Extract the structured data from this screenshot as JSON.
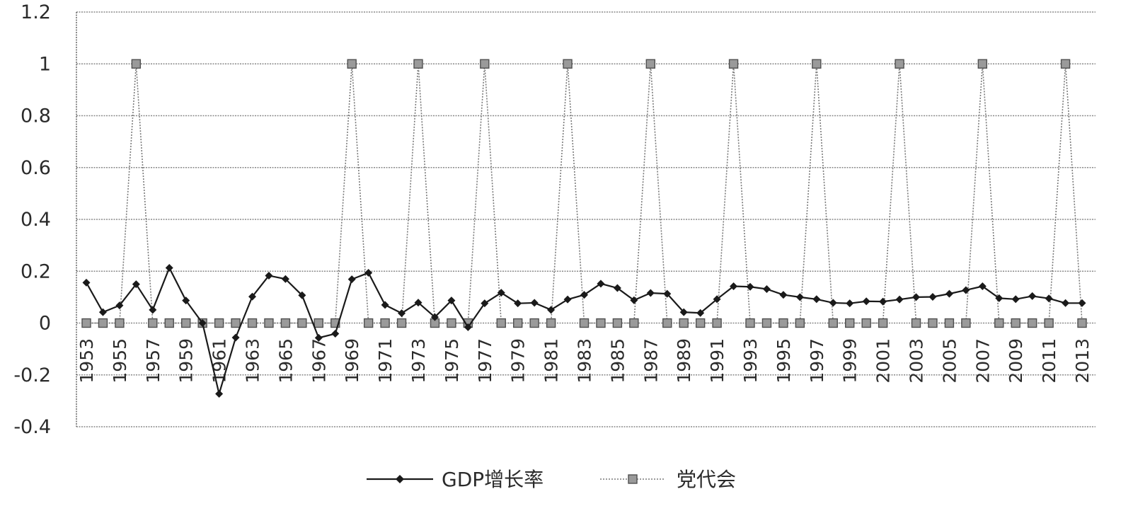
{
  "chart_data": {
    "type": "line",
    "title": "",
    "xlabel": "",
    "ylabel": "",
    "ylim": [
      -0.4,
      1.2
    ],
    "y_ticks": [
      "1.2",
      "1",
      "0.8",
      "0.6",
      "0.4",
      "0.2",
      "0",
      "-0.2",
      "-0.4"
    ],
    "grid": true,
    "legend_position": "bottom",
    "x_tick_labels": [
      "1953",
      "1955",
      "1957",
      "1959",
      "1961",
      "1963",
      "1965",
      "1967",
      "1969",
      "1971",
      "1973",
      "1975",
      "1977",
      "1979",
      "1981",
      "1983",
      "1985",
      "1987",
      "1989",
      "1991",
      "1993",
      "1995",
      "1997",
      "1999",
      "2001",
      "2003",
      "2005",
      "2007",
      "2009",
      "2011",
      "2013"
    ],
    "x": [
      1953,
      1954,
      1955,
      1956,
      1957,
      1958,
      1959,
      1960,
      1961,
      1962,
      1963,
      1964,
      1965,
      1966,
      1967,
      1968,
      1969,
      1970,
      1971,
      1972,
      1973,
      1974,
      1975,
      1976,
      1977,
      1978,
      1979,
      1980,
      1981,
      1982,
      1983,
      1984,
      1985,
      1986,
      1987,
      1988,
      1989,
      1990,
      1991,
      1992,
      1993,
      1994,
      1995,
      1996,
      1997,
      1998,
      1999,
      2000,
      2001,
      2002,
      2003,
      2004,
      2005,
      2006,
      2007,
      2008,
      2009,
      2010,
      2011,
      2012,
      2013
    ],
    "series": [
      {
        "name": "GDP增长率",
        "style": "solid",
        "marker": "diamond",
        "color": "#1a1a1a",
        "values": [
          0.156,
          0.042,
          0.068,
          0.15,
          0.051,
          0.213,
          0.087,
          0.0,
          -0.273,
          -0.056,
          0.102,
          0.183,
          0.17,
          0.107,
          -0.057,
          -0.041,
          0.169,
          0.194,
          0.07,
          0.038,
          0.079,
          0.023,
          0.087,
          -0.016,
          0.076,
          0.117,
          0.076,
          0.078,
          0.051,
          0.091,
          0.109,
          0.152,
          0.135,
          0.088,
          0.116,
          0.113,
          0.042,
          0.039,
          0.092,
          0.142,
          0.14,
          0.131,
          0.109,
          0.1,
          0.092,
          0.078,
          0.076,
          0.084,
          0.083,
          0.091,
          0.1,
          0.101,
          0.113,
          0.127,
          0.142,
          0.096,
          0.092,
          0.104,
          0.095,
          0.077,
          0.077
        ]
      },
      {
        "name": "党代会",
        "style": "dotted",
        "marker": "square",
        "color": "#7a7a7a",
        "values": [
          0,
          0,
          0,
          1,
          0,
          0,
          0,
          0,
          0,
          0,
          0,
          0,
          0,
          0,
          0,
          0,
          1,
          0,
          0,
          0,
          1,
          0,
          0,
          0,
          1,
          0,
          0,
          0,
          0,
          1,
          0,
          0,
          0,
          0,
          1,
          0,
          0,
          0,
          0,
          1,
          0,
          0,
          0,
          0,
          1,
          0,
          0,
          0,
          0,
          1,
          0,
          0,
          0,
          0,
          1,
          0,
          0,
          0,
          0,
          1,
          0
        ]
      }
    ]
  }
}
